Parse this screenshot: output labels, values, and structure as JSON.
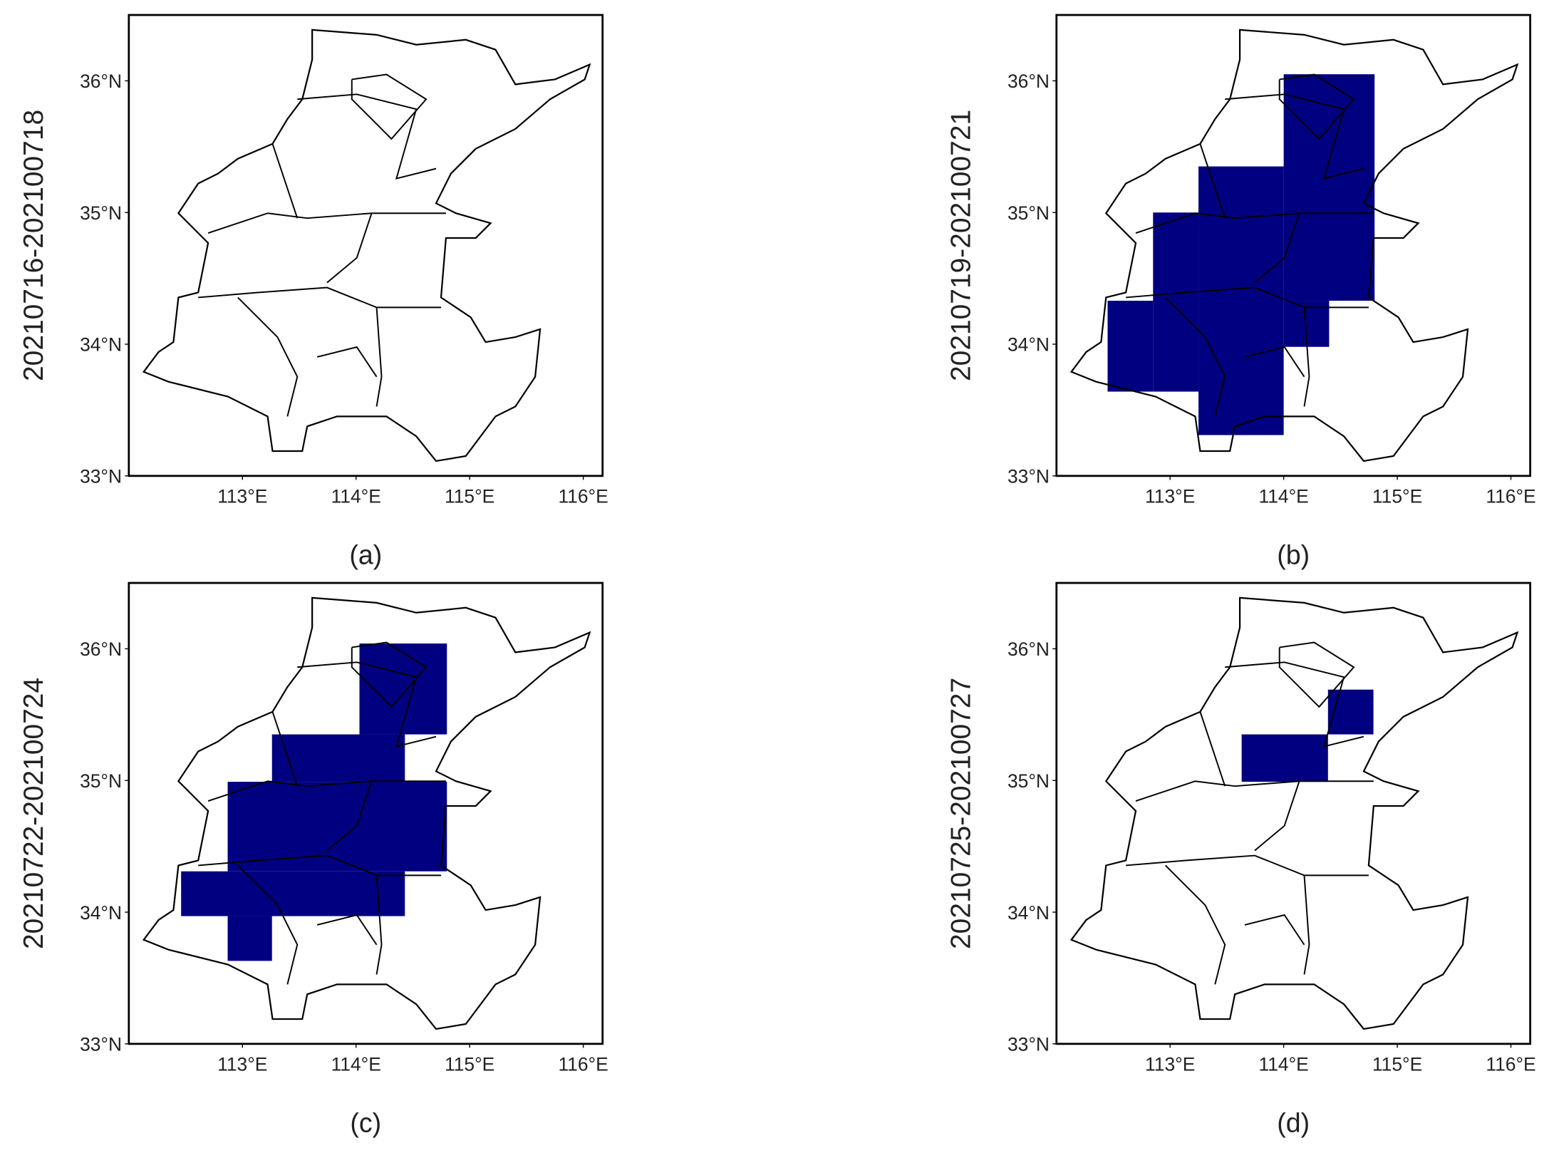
{
  "chart_data": [
    {
      "type": "map",
      "ylabel": "20210716-202100718",
      "caption": "(a)",
      "color": "#000080",
      "xlim": [
        112,
        116.17
      ],
      "ylim": [
        33,
        36.5
      ],
      "xticks": [
        {
          "value": 113,
          "label": "113°E"
        },
        {
          "value": 114,
          "label": "114°E"
        },
        {
          "value": 115,
          "label": "115°E"
        },
        {
          "value": 116,
          "label": "116°E"
        }
      ],
      "yticks": [
        {
          "value": 33,
          "label": "33°N"
        },
        {
          "value": 34,
          "label": "34°N"
        },
        {
          "value": 35,
          "label": "35°N"
        },
        {
          "value": 36,
          "label": "36°N"
        }
      ],
      "cells": []
    },
    {
      "type": "map",
      "ylabel": "20210719-202100721",
      "caption": "(b)",
      "color": "#000080",
      "xlim": [
        112,
        116.17
      ],
      "ylim": [
        33,
        36.5
      ],
      "xticks": [
        {
          "value": 113,
          "label": "113°E"
        },
        {
          "value": 114,
          "label": "114°E"
        },
        {
          "value": 115,
          "label": "115°E"
        },
        {
          "value": 116,
          "label": "116°E"
        }
      ],
      "yticks": [
        {
          "value": 33,
          "label": "33°N"
        },
        {
          "value": 34,
          "label": "34°N"
        },
        {
          "value": 35,
          "label": "35°N"
        },
        {
          "value": 36,
          "label": "36°N"
        }
      ],
      "cells": [
        [
          114.0,
          114.8,
          34.33,
          36.05
        ],
        [
          113.25,
          114.0,
          33.31,
          35.35
        ],
        [
          112.85,
          113.25,
          33.64,
          35.0
        ],
        [
          112.45,
          112.85,
          33.64,
          34.33
        ],
        [
          114.0,
          114.4,
          33.98,
          34.33
        ]
      ]
    },
    {
      "type": "map",
      "ylabel": "20210722-202100724",
      "caption": "(c)",
      "color": "#000080",
      "xlim": [
        112,
        116.17
      ],
      "ylim": [
        33,
        36.5
      ],
      "xticks": [
        {
          "value": 113,
          "label": "113°E"
        },
        {
          "value": 114,
          "label": "114°E"
        },
        {
          "value": 115,
          "label": "115°E"
        },
        {
          "value": 116,
          "label": "116°E"
        }
      ],
      "yticks": [
        {
          "value": 33,
          "label": "33°N"
        },
        {
          "value": 34,
          "label": "34°N"
        },
        {
          "value": 35,
          "label": "35°N"
        },
        {
          "value": 36,
          "label": "36°N"
        }
      ],
      "cells": [
        [
          114.03,
          114.8,
          35.35,
          36.04
        ],
        [
          113.26,
          114.43,
          34.99,
          35.35
        ],
        [
          112.87,
          114.8,
          34.31,
          34.99
        ],
        [
          112.46,
          114.43,
          33.97,
          34.31
        ],
        [
          112.87,
          113.26,
          33.63,
          33.97
        ]
      ]
    },
    {
      "type": "map",
      "ylabel": "20210725-202100727",
      "caption": "(d)",
      "color": "#000080",
      "xlim": [
        112,
        116.17
      ],
      "ylim": [
        33,
        36.5
      ],
      "xticks": [
        {
          "value": 113,
          "label": "113°E"
        },
        {
          "value": 114,
          "label": "114°E"
        },
        {
          "value": 115,
          "label": "115°E"
        },
        {
          "value": 116,
          "label": "116°E"
        }
      ],
      "yticks": [
        {
          "value": 33,
          "label": "33°N"
        },
        {
          "value": 34,
          "label": "34°N"
        },
        {
          "value": 35,
          "label": "35°N"
        },
        {
          "value": 36,
          "label": "36°N"
        }
      ],
      "cells": [
        [
          114.39,
          114.79,
          35.35,
          35.69
        ],
        [
          113.63,
          114.39,
          34.99,
          35.35
        ]
      ]
    }
  ]
}
